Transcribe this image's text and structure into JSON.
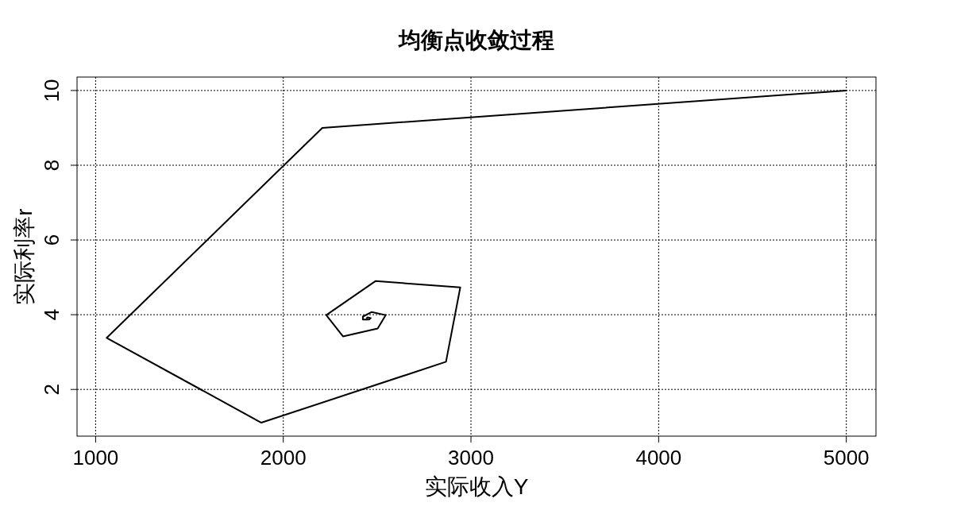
{
  "chart_data": {
    "type": "line",
    "title": "均衡点收敛过程",
    "xlabel": "实际收入Y",
    "ylabel": "实际利率r",
    "x": [
      5000,
      2208,
      1059,
      1883,
      2867,
      2943,
      2491,
      2229,
      2318,
      2503,
      2546,
      2470,
      2424,
      2424,
      2457,
      2466,
      2449,
      2445
    ],
    "series": [
      {
        "color": "#000000",
        "values": [
          10,
          9.0,
          3.38,
          1.11,
          2.74,
          4.73,
          4.9,
          3.99,
          3.42,
          3.63,
          3.99,
          4.07,
          3.95,
          3.87,
          3.87,
          3.91,
          3.93,
          3.91
        ]
      }
    ],
    "xlim": [
      901,
      5158
    ],
    "ylim": [
      0.75,
      10.36
    ],
    "xticks": [
      1000,
      2000,
      3000,
      4000,
      5000
    ],
    "yticks": [
      2,
      4,
      6,
      8,
      10
    ],
    "grid": true,
    "marker": "none",
    "line_style": "solid"
  }
}
